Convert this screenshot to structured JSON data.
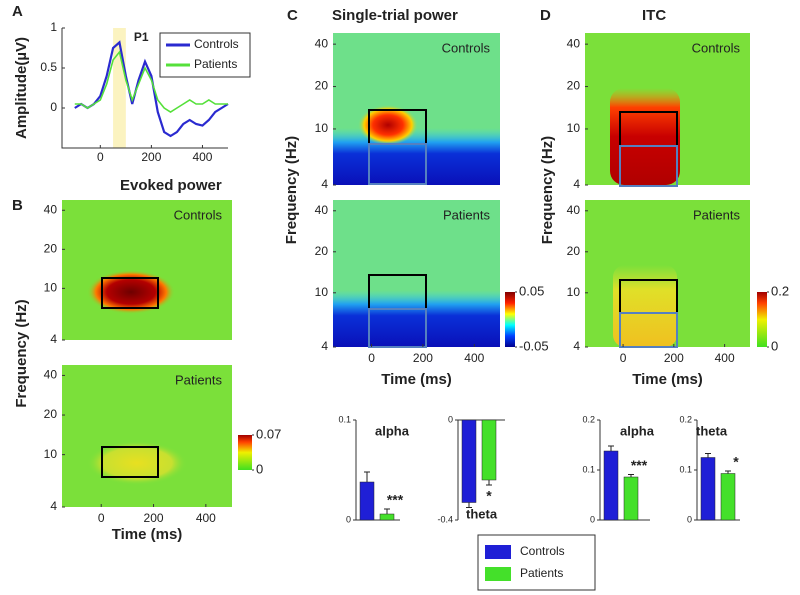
{
  "chart_data": [
    {
      "type": "line",
      "panel": "A",
      "ylabel": "Amplitude(µV)",
      "annotation": "P1",
      "x": [
        -100,
        -75,
        -50,
        -25,
        0,
        25,
        50,
        75,
        100,
        125,
        150,
        175,
        200,
        225,
        250,
        275,
        300,
        325,
        350,
        375,
        400,
        425,
        450,
        475,
        500
      ],
      "series": [
        {
          "name": "Controls",
          "color": "#2a2ad0",
          "values": [
            0.0,
            0.05,
            0.0,
            0.05,
            0.15,
            0.4,
            0.75,
            0.82,
            0.4,
            0.05,
            0.35,
            0.58,
            0.4,
            -0.05,
            -0.3,
            -0.35,
            -0.3,
            -0.2,
            -0.15,
            -0.2,
            -0.22,
            -0.15,
            -0.05,
            0.0,
            0.05
          ]
        },
        {
          "name": "Patients",
          "color": "#55e03a",
          "values": [
            0.05,
            0.05,
            0.0,
            0.05,
            0.1,
            0.3,
            0.6,
            0.7,
            0.35,
            0.1,
            0.3,
            0.5,
            0.35,
            0.1,
            0.0,
            -0.05,
            0.0,
            0.05,
            0.1,
            0.05,
            0.05,
            0.1,
            0.05,
            0.05,
            0.05
          ]
        }
      ],
      "xlim": [
        -150,
        500
      ],
      "ylim": [
        -0.5,
        1
      ],
      "xticks": [
        0,
        200,
        400
      ],
      "yticks": [
        0,
        0.5,
        1
      ],
      "legend": "upper right"
    },
    {
      "type": "heatmap",
      "panel": "B",
      "title": "Evoked power",
      "ylabel": "Frequency (Hz)",
      "xlabel": "Time (ms)",
      "maps": [
        "Controls",
        "Patients"
      ],
      "xlim": [
        -150,
        500
      ],
      "ylim": [
        4,
        48
      ],
      "log_y": true,
      "xticks": [
        0,
        200,
        400
      ],
      "yticks": [
        4,
        10,
        20,
        40
      ],
      "clim": [
        0,
        0.07
      ],
      "cticks": [
        0,
        0.07
      ],
      "colormap": "green-red"
    },
    {
      "type": "heatmap",
      "panel": "C",
      "title": "Single-trial power",
      "ylabel": "Frequency (Hz)",
      "xlabel": "Time (ms)",
      "maps": [
        "Controls",
        "Patients"
      ],
      "xlim": [
        -150,
        500
      ],
      "ylim": [
        4,
        48
      ],
      "log_y": true,
      "xticks": [
        0,
        200,
        400
      ],
      "yticks": [
        4,
        10,
        20,
        40
      ],
      "clim": [
        -0.05,
        0.05
      ],
      "cticks": [
        -0.05,
        0.05
      ],
      "colormap": "jet"
    },
    {
      "type": "heatmap",
      "panel": "D",
      "title": "ITC",
      "ylabel": "Frequency (Hz)",
      "xlabel": "Time (ms)",
      "maps": [
        "Controls",
        "Patients"
      ],
      "xlim": [
        -150,
        500
      ],
      "ylim": [
        4,
        48
      ],
      "log_y": true,
      "xticks": [
        0,
        200,
        400
      ],
      "yticks": [
        4,
        10,
        20,
        40
      ],
      "clim": [
        0,
        0.2
      ],
      "cticks": [
        0,
        0.2
      ],
      "colormap": "green-red"
    },
    {
      "type": "bar",
      "title": "alpha",
      "categories": [
        null,
        null
      ],
      "values": [
        0.038,
        0.006
      ],
      "errors": [
        0.01,
        0.005
      ],
      "colors": [
        "#1f1fd6",
        "#44e02a"
      ],
      "annotation": "***",
      "ylim": [
        0,
        0.1
      ],
      "yticks": [
        0,
        0.1
      ]
    },
    {
      "type": "bar",
      "title": "theta",
      "categories": [
        null,
        null
      ],
      "values": [
        -0.33,
        -0.24
      ],
      "errors": [
        0.02,
        0.02
      ],
      "colors": [
        "#1f1fd6",
        "#44e02a"
      ],
      "annotation": "*",
      "ylim": [
        -0.4,
        0
      ],
      "yticks": [
        -0.4,
        0
      ]
    },
    {
      "type": "bar",
      "title": "alpha",
      "categories": [
        null,
        null
      ],
      "values": [
        0.138,
        0.086
      ],
      "errors": [
        0.01,
        0.005
      ],
      "colors": [
        "#1f1fd6",
        "#44e02a"
      ],
      "annotation": "***",
      "ylim": [
        0,
        0.2
      ],
      "yticks": [
        0,
        0.1,
        0.2
      ]
    },
    {
      "type": "bar",
      "title": "theta",
      "categories": [
        null,
        null
      ],
      "values": [
        0.125,
        0.093
      ],
      "errors": [
        0.008,
        0.005
      ],
      "colors": [
        "#1f1fd6",
        "#44e02a"
      ],
      "annotation": "*",
      "ylim": [
        0,
        0.2
      ],
      "yticks": [
        0,
        0.1,
        0.2
      ]
    }
  ],
  "legend": {
    "entries": [
      {
        "name": "Controls",
        "color": "#1f1fd6"
      },
      {
        "name": "Patients",
        "color": "#44e02a"
      }
    ]
  }
}
